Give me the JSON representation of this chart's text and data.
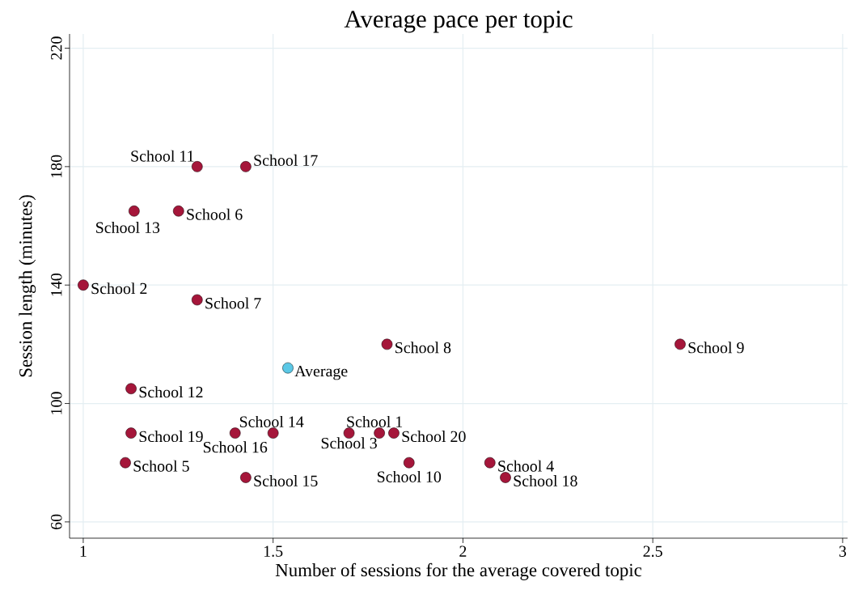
{
  "chart_data": {
    "type": "scatter",
    "title": "Average pace per topic",
    "xlabel": "Number of sessions for the average covered topic",
    "ylabel": "Session length (minutes)",
    "xlim": [
      0.964,
      3.013
    ],
    "ylim": [
      54.5,
      224.8
    ],
    "xticks": [
      1,
      1.5,
      2,
      2.5,
      3
    ],
    "yticks": [
      60,
      100,
      140,
      180,
      220
    ],
    "grid": true,
    "legend": false,
    "series": [
      {
        "color": "#a5163a",
        "x": [
          1.3,
          1.428,
          1.134,
          1.251,
          1.0,
          1.3,
          1.8,
          2.572,
          1.126,
          1.126,
          1.4,
          1.5,
          1.7,
          1.78,
          1.818,
          1.111,
          1.858,
          2.071,
          1.428,
          2.112
        ],
        "values": [
          180,
          180,
          165,
          165,
          140,
          135,
          120,
          120,
          105,
          90,
          90,
          90,
          90,
          90,
          90,
          80,
          80,
          80,
          75,
          75
        ]
      },
      {
        "name": "Average",
        "color": "#5bc8e6",
        "x": [
          1.539
        ],
        "values": [
          112
        ]
      }
    ],
    "annotations": [
      {
        "text": "School 11",
        "x": 1.3,
        "y": 180
      },
      {
        "text": "School 17",
        "x": 1.428,
        "y": 180
      },
      {
        "text": "School 13",
        "x": 1.134,
        "y": 165
      },
      {
        "text": "School 6",
        "x": 1.251,
        "y": 165
      },
      {
        "text": "School 2",
        "x": 1.0,
        "y": 140
      },
      {
        "text": "School 7",
        "x": 1.3,
        "y": 135
      },
      {
        "text": "School 8",
        "x": 1.8,
        "y": 120
      },
      {
        "text": "School 9",
        "x": 2.572,
        "y": 120
      },
      {
        "text": "School 12",
        "x": 1.126,
        "y": 105
      },
      {
        "text": "School 19",
        "x": 1.126,
        "y": 90
      },
      {
        "text": "School 16",
        "x": 1.4,
        "y": 90
      },
      {
        "text": "School 14",
        "x": 1.5,
        "y": 90
      },
      {
        "text": "School 3",
        "x": 1.7,
        "y": 90
      },
      {
        "text": "School 1",
        "x": 1.78,
        "y": 90
      },
      {
        "text": "School 20",
        "x": 1.818,
        "y": 90
      },
      {
        "text": "School 5",
        "x": 1.111,
        "y": 80
      },
      {
        "text": "School 10",
        "x": 1.858,
        "y": 80
      },
      {
        "text": "School 4",
        "x": 2.071,
        "y": 80
      },
      {
        "text": "School 15",
        "x": 1.428,
        "y": 75
      },
      {
        "text": "School 18",
        "x": 2.112,
        "y": 75
      }
    ]
  }
}
